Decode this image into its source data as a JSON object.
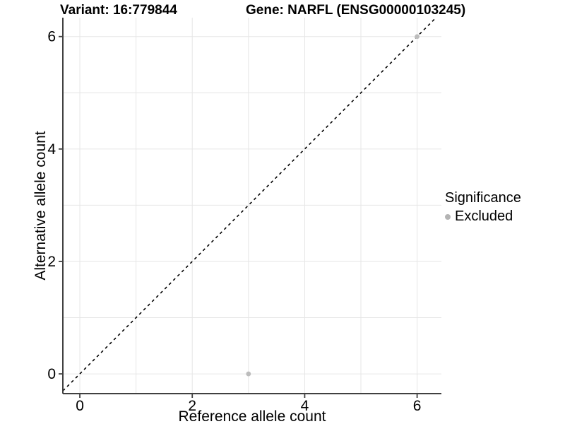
{
  "header": {
    "variant_title": "Variant: 16:779844",
    "gene_title": "Gene: NARFL (ENSG00000103245)"
  },
  "chart_data": {
    "type": "scatter",
    "title": "Variant: 16:779844 — Gene: NARFL (ENSG00000103245)",
    "xlabel": "Reference allele count",
    "ylabel": "Alternative allele count",
    "xlim": [
      -0.302,
      6.432
    ],
    "ylim": [
      -0.351,
      6.336
    ],
    "xticks": [
      0,
      2,
      4,
      6
    ],
    "yticks": [
      0,
      2,
      4,
      6
    ],
    "xtick_labels": [
      "0",
      "2",
      "4",
      "6"
    ],
    "ytick_labels": [
      "0",
      "2",
      "4",
      "6"
    ],
    "grid_x": [
      0,
      1,
      2,
      3,
      4,
      5,
      6
    ],
    "grid_y": [
      0,
      1,
      2,
      3,
      4,
      5,
      6
    ],
    "grid_color": "#e6e6e6",
    "axis_color": "#404040",
    "tick_label_color": "#000000",
    "identity_line": {
      "slope": 1,
      "intercept": 0,
      "style": "dashed",
      "color": "#000000"
    },
    "series": [
      {
        "name": "Excluded",
        "color": "#bcbcbc",
        "points": [
          {
            "x": 3,
            "y": 0
          },
          {
            "x": 6,
            "y": 6
          }
        ]
      }
    ],
    "legend": {
      "title": "Significance",
      "position": "right",
      "items": [
        {
          "label": "Excluded",
          "color": "#b4b4b4"
        }
      ]
    }
  }
}
